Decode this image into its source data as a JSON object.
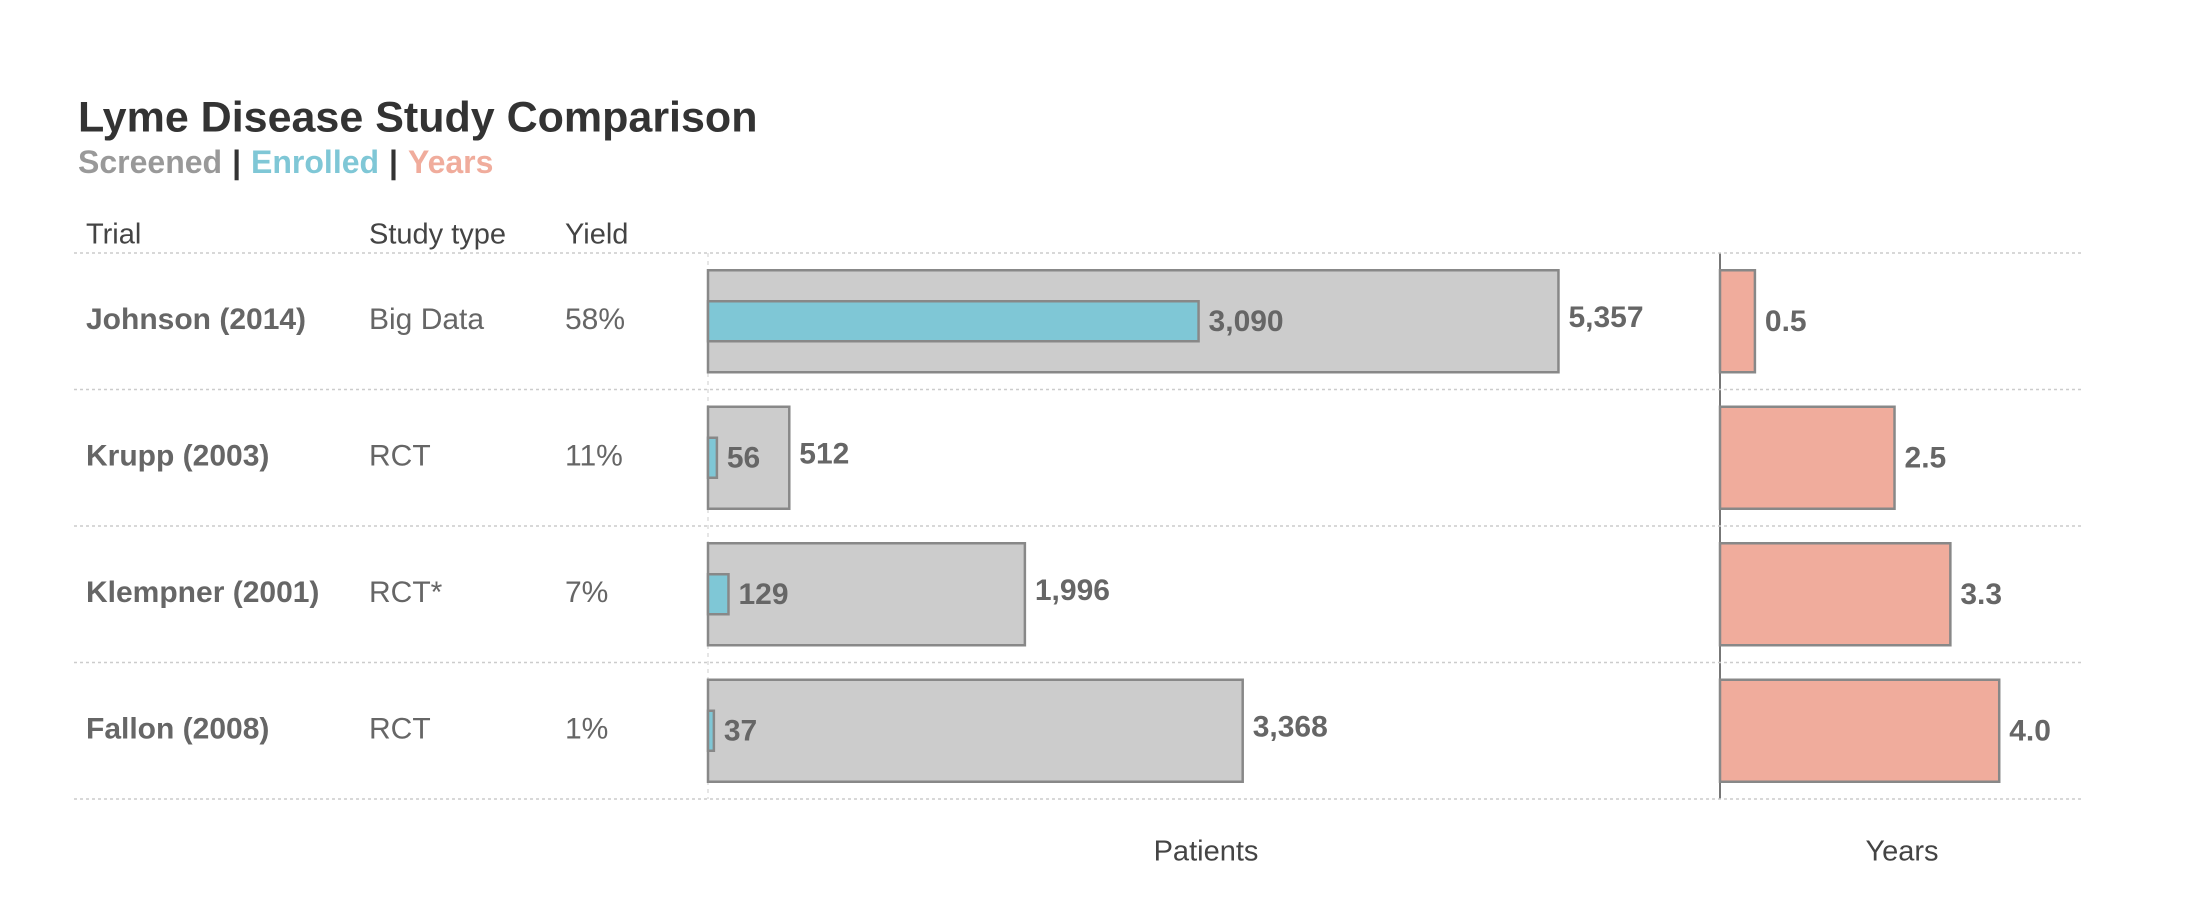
{
  "chart_data": {
    "type": "bar",
    "title": "Lyme Disease Study Comparison",
    "legend_separator": "|",
    "columns": [
      "Trial",
      "Study type",
      "Yield"
    ],
    "categories": [
      "Johnson (2014)",
      "Krupp (2003)",
      "Klempner (2001)",
      "Fallon (2008)"
    ],
    "study_types": [
      "Big Data",
      "RCT",
      "RCT*",
      "RCT"
    ],
    "yields": [
      "58%",
      "11%",
      "7%",
      "1%"
    ],
    "series": [
      {
        "name": "Screened",
        "color": "#cccccc",
        "values": [
          5357,
          512,
          1996,
          3368
        ],
        "value_labels": [
          "5,357",
          "512",
          "1,996",
          "3,368"
        ]
      },
      {
        "name": "Enrolled",
        "color": "#7fc7d6",
        "values": [
          3090,
          56,
          129,
          37
        ],
        "value_labels": [
          "3,090",
          "56",
          "129",
          "37"
        ]
      },
      {
        "name": "Years",
        "color": "#f0ac9c",
        "axis": "x2",
        "values": [
          0.5,
          2.5,
          3.3,
          4.0
        ],
        "value_labels": [
          "0.5",
          "2.5",
          "3.3",
          "4.0"
        ]
      }
    ],
    "xlabel": "Patients",
    "x2label": "Years",
    "xlim": [
      0,
      6280
    ],
    "x2lim": [
      0,
      5.2
    ]
  }
}
